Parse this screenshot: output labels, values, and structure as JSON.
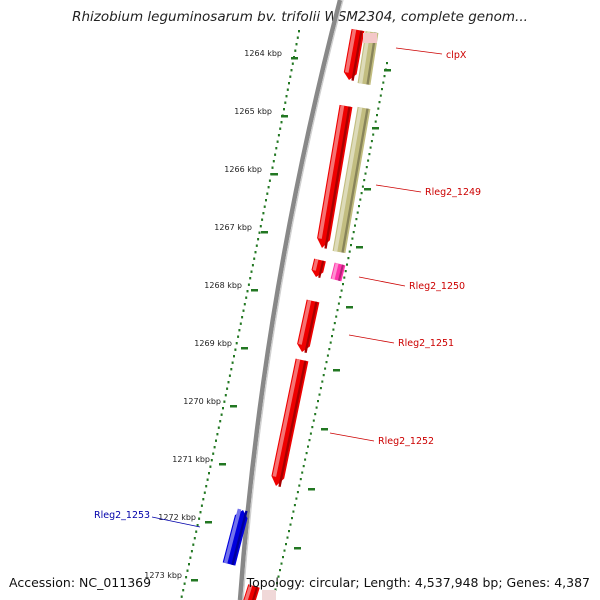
{
  "title": "Rhizobium leguminosarum bv. trifolii WSM2304, complete genom...",
  "footer": {
    "accession": "Accession: NC_011369",
    "topology": "Topology: circular; Length: 4,537,948 bp; Genes: 4,387"
  },
  "colors": {
    "forward_gene": "#ee0000",
    "reverse_gene": "#0000dd",
    "cds": "#c2bd80",
    "misc_feature": "#ff33aa",
    "ticks": "#227722",
    "backbone": "#888888"
  },
  "scale": {
    "ticks": [
      {
        "label": "1264 kbp"
      },
      {
        "label": "1265 kbp"
      },
      {
        "label": "1266 kbp"
      },
      {
        "label": "1267 kbp"
      },
      {
        "label": "1268 kbp"
      },
      {
        "label": "1269 kbp"
      },
      {
        "label": "1270 kbp"
      },
      {
        "label": "1271 kbp"
      },
      {
        "label": "1272 kbp"
      },
      {
        "label": "1273 kbp"
      }
    ]
  },
  "genes": [
    {
      "name": "clpX",
      "strand": "forward"
    },
    {
      "name": "Rleg2_1249",
      "strand": "forward"
    },
    {
      "name": "Rleg2_1250",
      "strand": "forward"
    },
    {
      "name": "Rleg2_1251",
      "strand": "forward"
    },
    {
      "name": "Rleg2_1252",
      "strand": "forward"
    },
    {
      "name": "Rleg2_1253",
      "strand": "reverse"
    }
  ]
}
